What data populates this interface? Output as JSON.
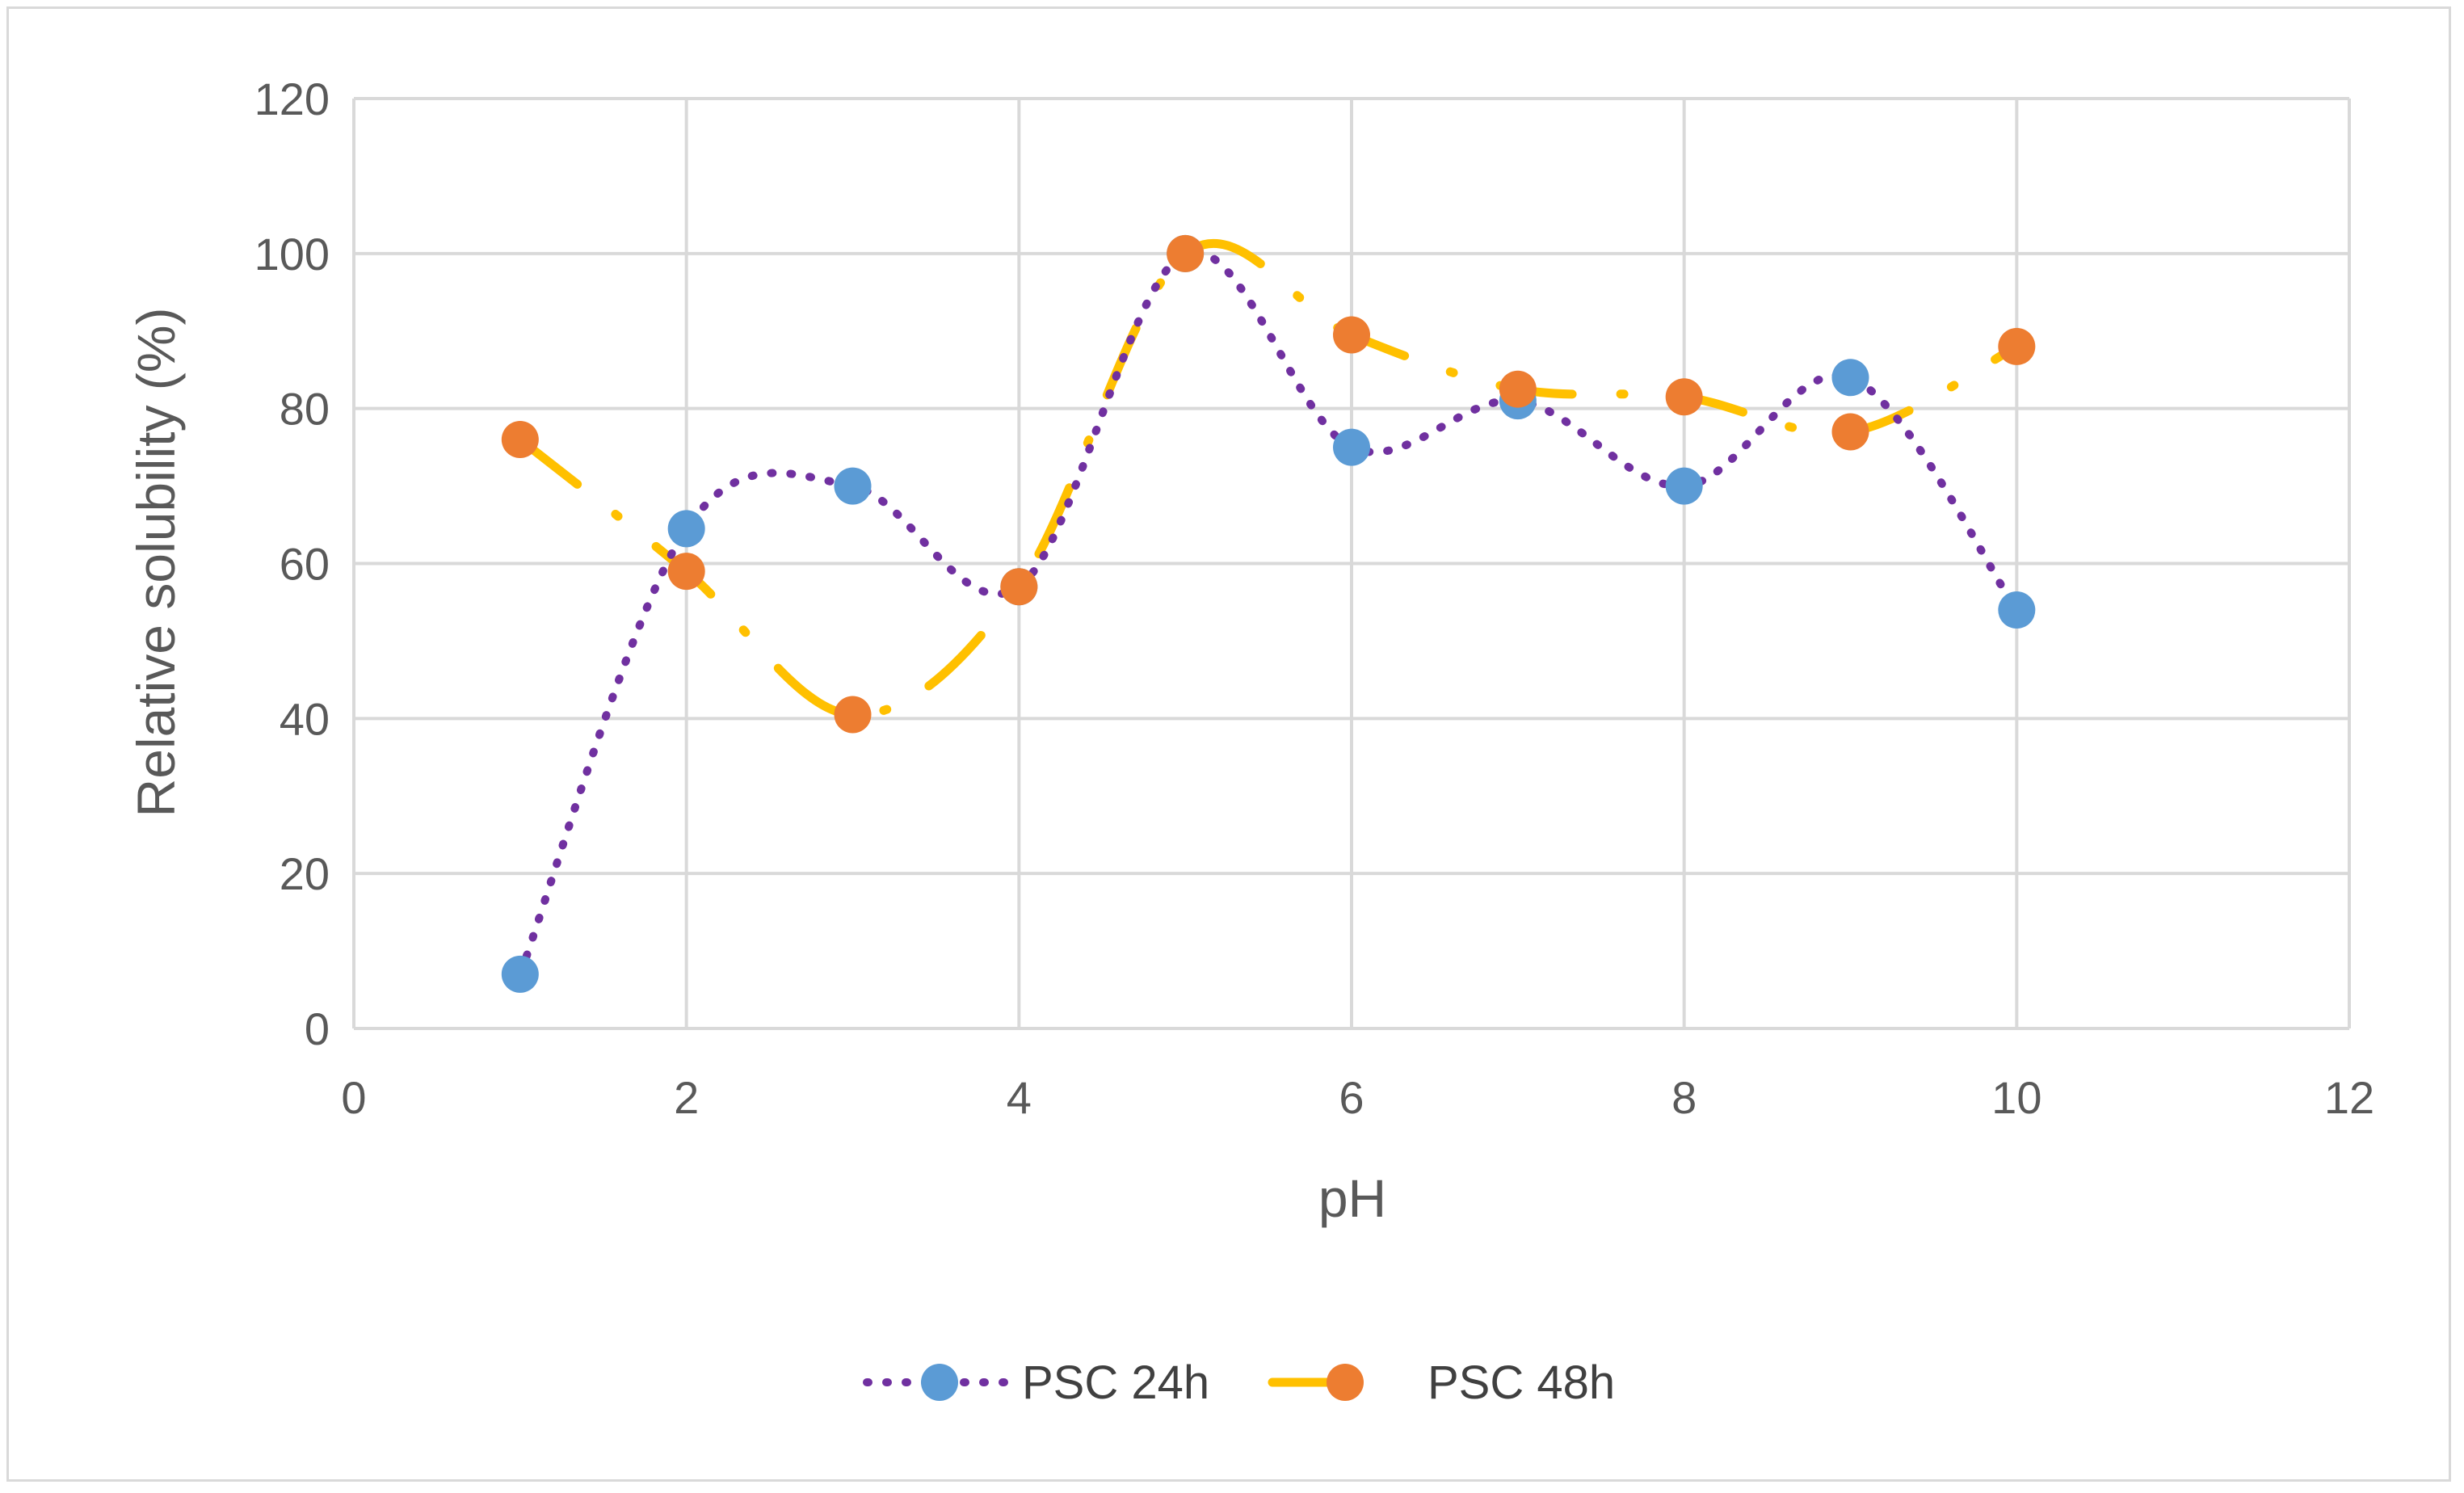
{
  "chart_data": {
    "type": "scatter",
    "title": "",
    "xlabel": "pH",
    "ylabel": "Relative solubility (%)",
    "xlim": [
      0,
      12
    ],
    "ylim": [
      0,
      120
    ],
    "xticks": [
      0,
      2,
      4,
      6,
      8,
      10,
      12
    ],
    "yticks": [
      0,
      20,
      40,
      60,
      80,
      100,
      120
    ],
    "grid": true,
    "legend_position": "bottom",
    "series": [
      {
        "name": "PSC 24h",
        "marker_color": "#5b9bd5",
        "line_color": "#7030a0",
        "line_style": "dotted",
        "x": [
          1,
          2,
          3,
          4,
          5,
          6,
          7,
          8,
          9,
          10
        ],
        "y": [
          7,
          64.5,
          70,
          57,
          100,
          75,
          81,
          70,
          84,
          54
        ]
      },
      {
        "name": "PSC 48h",
        "marker_color": "#ed7d31",
        "line_color": "#ffc000",
        "line_style": "dash-dot",
        "x": [
          1,
          2,
          3,
          4,
          5,
          6,
          7,
          8,
          9,
          10
        ],
        "y": [
          76,
          59,
          40.5,
          57,
          100,
          89.5,
          82.5,
          81.5,
          77,
          88
        ]
      }
    ]
  }
}
